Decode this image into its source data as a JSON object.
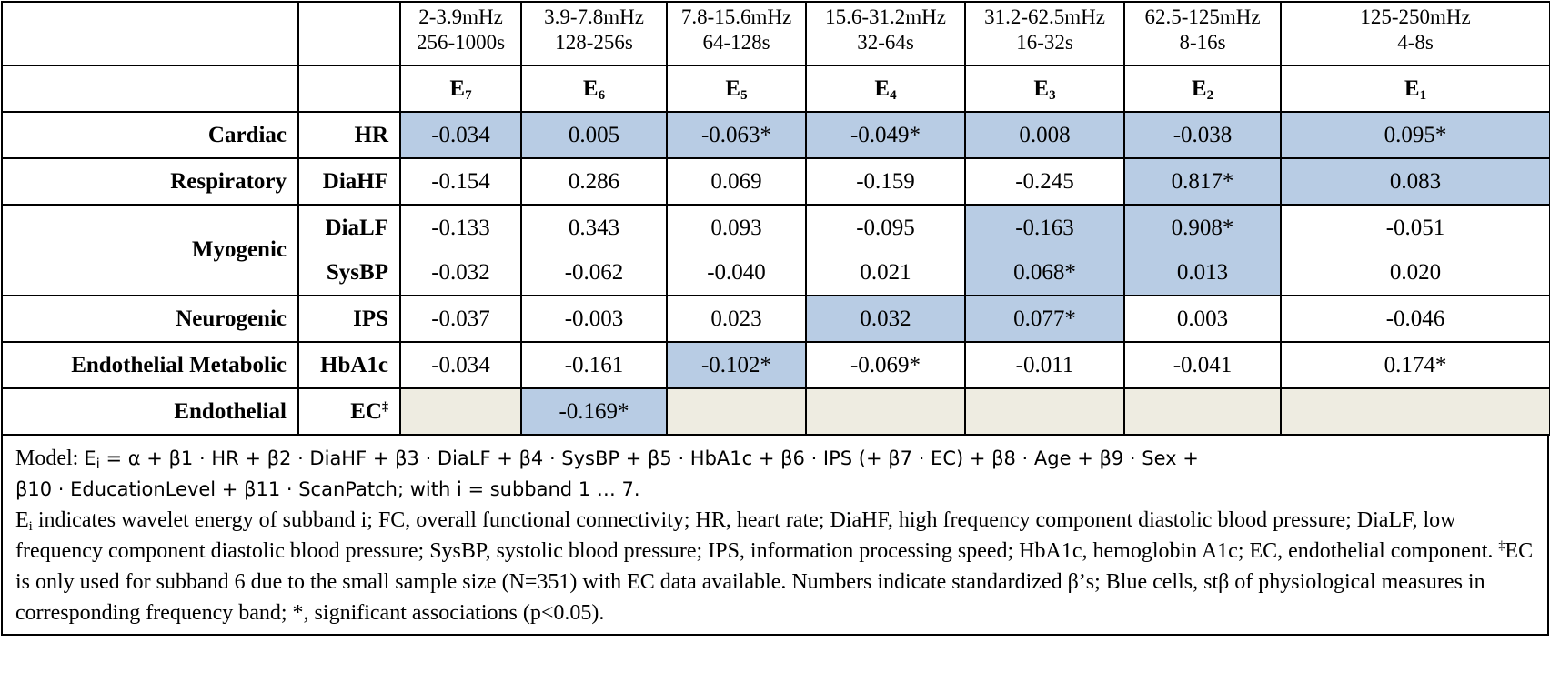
{
  "header": {
    "bands": [
      {
        "freq": "2-3.9mHz",
        "period": "256-1000s",
        "label": "E",
        "sub": "7"
      },
      {
        "freq": "3.9-7.8mHz",
        "period": "128-256s",
        "label": "E",
        "sub": "6"
      },
      {
        "freq": "7.8-15.6mHz",
        "period": "64-128s",
        "label": "E",
        "sub": "5"
      },
      {
        "freq": "15.6-31.2mHz",
        "period": "32-64s",
        "label": "E",
        "sub": "4"
      },
      {
        "freq": "31.2-62.5mHz",
        "period": "16-32s",
        "label": "E",
        "sub": "3"
      },
      {
        "freq": "62.5-125mHz",
        "period": "8-16s",
        "label": "E",
        "sub": "2"
      },
      {
        "freq": "125-250mHz",
        "period": "4-8s",
        "label": "E",
        "sub": "1"
      }
    ]
  },
  "rows": {
    "cardiac": {
      "category": "Cardiac",
      "measure": "HR",
      "values": [
        "-0.034",
        "0.005",
        "-0.063*",
        "-0.049*",
        "0.008",
        "-0.038",
        "0.095*"
      ]
    },
    "respiratory": {
      "category": "Respiratory",
      "measure": "DiaHF",
      "values": [
        "-0.154",
        "0.286",
        "0.069",
        "-0.159",
        "-0.245",
        "0.817*",
        "0.083"
      ]
    },
    "myogenic": {
      "category": "Myogenic",
      "dialf": {
        "measure": "DiaLF",
        "values": [
          "-0.133",
          "0.343",
          "0.093",
          "-0.095",
          "-0.163",
          "0.908*",
          "-0.051"
        ]
      },
      "sysbp": {
        "measure": "SysBP",
        "values": [
          "-0.032",
          "-0.062",
          "-0.040",
          "0.021",
          "0.068*",
          "0.013",
          "0.020"
        ]
      }
    },
    "neurogenic": {
      "category": "Neurogenic",
      "measure": "IPS",
      "values": [
        "-0.037",
        "-0.003",
        "0.023",
        "0.032",
        "0.077*",
        "0.003",
        "-0.046"
      ]
    },
    "endo_metabolic": {
      "category": "Endothelial Metabolic",
      "measure": "HbA1c",
      "values": [
        "-0.034",
        "-0.161",
        "-0.102*",
        "-0.069*",
        "-0.011",
        "-0.041",
        "0.174*"
      ]
    },
    "endothelial": {
      "category": "Endothelial",
      "measure": "EC",
      "measure_sup": "‡",
      "value_e6": "-0.169*"
    }
  },
  "notes": {
    "model_label": "Model: ",
    "model_line1": "= α + β1 · HR + β2 · DiaHF + β3 · DiaLF + β4 · SysBP + β5 · HbA1c + β6 · IPS (+ β7 · EC) + β8 · Age + β9 · Sex +",
    "model_line2": "β10 · EducationLevel + β11 · ScanPatch; with i = subband 1 … 7.",
    "defs_a": " indicates wavelet energy of subband i; FC, overall functional connectivity; HR, heart rate; DiaHF, high frequency component diastolic blood pressure; DiaLF, low frequency component diastolic blood pressure; SysBP, systolic blood pressure; IPS, information processing speed; HbA1c, hemoglobin A1c; EC, endothelial component. ",
    "dagger": "‡",
    "defs_b": "EC is only used for subband 6 due to the small sample size (N=351) with EC data available. Numbers indicate standardized β’s; Blue cells, stβ of physiological measures in corresponding frequency band; *, significant associations (p<0.05)."
  }
}
